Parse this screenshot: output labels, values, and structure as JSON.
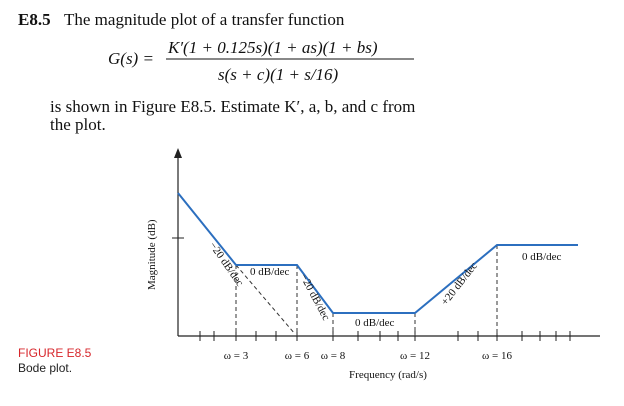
{
  "problem": {
    "number": "E8.5",
    "intro": "The magnitude plot of a transfer function",
    "equation": {
      "lhs": "G(s) =",
      "numerator": "K′(1 + 0.125s)(1 + as)(1 + bs)",
      "denominator": "s(s + c)(1 + s/16)"
    },
    "text_lines": [
      "is shown in Figure E8.5. Estimate K′, a, b, and c from",
      "the plot."
    ]
  },
  "figure": {
    "y_label": "Magnitude (dB)",
    "x_label": "Frequency (rad/s)",
    "slope_labels": [
      "−20 dB/dec",
      "0 dB/dec",
      "−20 dB/dec",
      "0 dB/dec",
      "+20 dB/dec",
      "0 dB/dec"
    ],
    "frequency_labels": [
      "ω = 3",
      "ω = 6",
      "ω = 8",
      "ω = 12",
      "ω = 16"
    ],
    "caption": {
      "label": "FIGURE E8.5",
      "text": "Bode plot."
    }
  }
}
